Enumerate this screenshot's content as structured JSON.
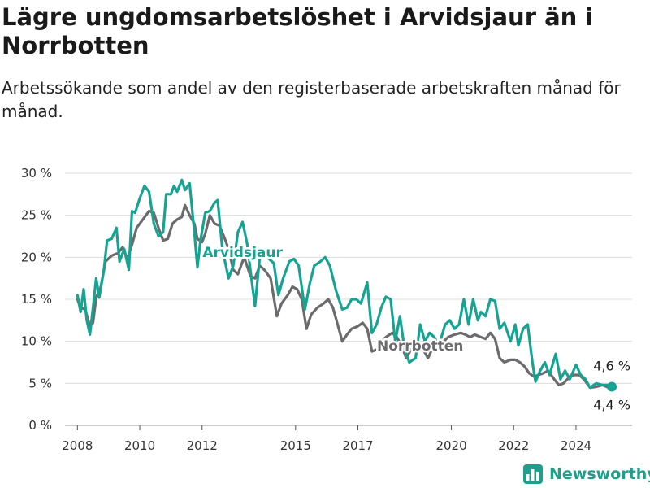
{
  "header": {
    "title": "Lägre ungdomsarbetslöshet i Arvidsjaur än i Norrbotten",
    "subtitle": "Arbetssökande som andel av den registerbaserade arbetskraften månad för månad."
  },
  "brand": {
    "name": "Newsworthy",
    "icon": "bar-chart-icon",
    "color": "#1f9e8a"
  },
  "chart_data": {
    "type": "line",
    "ylim": [
      0,
      30
    ],
    "xlim": [
      2007.6,
      2025.8
    ],
    "y_ticks": [
      0,
      5,
      10,
      15,
      20,
      25,
      30
    ],
    "y_tick_labels": [
      "0 %",
      "5 %",
      "10 %",
      "15 %",
      "20 %",
      "25 %",
      "30 %"
    ],
    "x_ticks": [
      2008,
      2010,
      2012,
      2015,
      2017,
      2020,
      2022,
      2024
    ],
    "x_tick_labels": [
      "2008",
      "2010",
      "2012",
      "2015",
      "2017",
      "2020",
      "2022",
      "2024"
    ],
    "grid": true,
    "series": [
      {
        "name": "Norrbotten",
        "color": "#6b6b6e",
        "end_label": "4,4 %",
        "points": [
          [
            2008,
            15
          ],
          [
            2008.1,
            14
          ],
          [
            2008.25,
            13.8
          ],
          [
            2008.4,
            11.8
          ],
          [
            2008.5,
            12.2
          ],
          [
            2008.6,
            15.2
          ],
          [
            2008.75,
            16.5
          ],
          [
            2008.9,
            19.5
          ],
          [
            2009.1,
            20.2
          ],
          [
            2009.3,
            20.5
          ],
          [
            2009.45,
            21.2
          ],
          [
            2009.6,
            19.8
          ],
          [
            2009.75,
            21.5
          ],
          [
            2009.9,
            23.5
          ],
          [
            2010.1,
            24.5
          ],
          [
            2010.3,
            25.5
          ],
          [
            2010.45,
            25.3
          ],
          [
            2010.6,
            23.5
          ],
          [
            2010.75,
            22
          ],
          [
            2010.9,
            22.2
          ],
          [
            2011.05,
            24
          ],
          [
            2011.2,
            24.5
          ],
          [
            2011.35,
            24.8
          ],
          [
            2011.45,
            26.2
          ],
          [
            2011.6,
            25
          ],
          [
            2011.75,
            24
          ],
          [
            2011.85,
            22.2
          ],
          [
            2012.0,
            21.8
          ],
          [
            2012.1,
            22.8
          ],
          [
            2012.25,
            25
          ],
          [
            2012.4,
            24
          ],
          [
            2012.55,
            23.8
          ],
          [
            2012.7,
            22.5
          ],
          [
            2012.85,
            21
          ],
          [
            2013.0,
            18.5
          ],
          [
            2013.15,
            18
          ],
          [
            2013.35,
            20
          ],
          [
            2013.55,
            17.8
          ],
          [
            2013.7,
            17.5
          ],
          [
            2013.85,
            19
          ],
          [
            2014.0,
            18.5
          ],
          [
            2014.2,
            17.5
          ],
          [
            2014.4,
            13
          ],
          [
            2014.55,
            14.5
          ],
          [
            2014.75,
            15.5
          ],
          [
            2014.9,
            16.5
          ],
          [
            2015.05,
            16.2
          ],
          [
            2015.2,
            15
          ],
          [
            2015.35,
            11.5
          ],
          [
            2015.5,
            13.2
          ],
          [
            2015.7,
            14
          ],
          [
            2015.9,
            14.5
          ],
          [
            2016.05,
            15
          ],
          [
            2016.2,
            14
          ],
          [
            2016.35,
            12
          ],
          [
            2016.5,
            10
          ],
          [
            2016.65,
            10.8
          ],
          [
            2016.8,
            11.5
          ],
          [
            2017.0,
            11.8
          ],
          [
            2017.15,
            12.2
          ],
          [
            2017.3,
            11.5
          ],
          [
            2017.45,
            8.8
          ],
          [
            2017.6,
            9
          ],
          [
            2017.75,
            10
          ],
          [
            2017.9,
            10.5
          ],
          [
            2018.1,
            11
          ],
          [
            2018.25,
            10.5
          ],
          [
            2018.4,
            9.5
          ],
          [
            2018.55,
            8
          ],
          [
            2018.7,
            9
          ],
          [
            2018.9,
            9.5
          ],
          [
            2019.1,
            9
          ],
          [
            2019.25,
            8
          ],
          [
            2019.4,
            9.2
          ],
          [
            2019.55,
            9.5
          ],
          [
            2019.75,
            10
          ],
          [
            2019.9,
            10.5
          ],
          [
            2020.1,
            10.8
          ],
          [
            2020.3,
            11
          ],
          [
            2020.45,
            10.8
          ],
          [
            2020.6,
            10.5
          ],
          [
            2020.75,
            10.8
          ],
          [
            2020.95,
            10.5
          ],
          [
            2021.1,
            10.3
          ],
          [
            2021.25,
            11
          ],
          [
            2021.4,
            10.3
          ],
          [
            2021.55,
            8
          ],
          [
            2021.7,
            7.5
          ],
          [
            2021.9,
            7.8
          ],
          [
            2022.05,
            7.8
          ],
          [
            2022.2,
            7.5
          ],
          [
            2022.35,
            7
          ],
          [
            2022.5,
            6.2
          ],
          [
            2022.65,
            5.8
          ],
          [
            2022.8,
            6
          ],
          [
            2022.95,
            6.2
          ],
          [
            2023.1,
            6.5
          ],
          [
            2023.3,
            5.5
          ],
          [
            2023.45,
            4.8
          ],
          [
            2023.6,
            5
          ],
          [
            2023.8,
            5.8
          ],
          [
            2023.95,
            6
          ],
          [
            2024.1,
            6
          ],
          [
            2024.25,
            5.5
          ],
          [
            2024.45,
            4.5
          ],
          [
            2024.65,
            4.6
          ],
          [
            2024.85,
            4.8
          ],
          [
            2025.05,
            4.5
          ],
          [
            2025.15,
            4.4
          ]
        ]
      },
      {
        "name": "Arvidsjaur",
        "color": "#17a392",
        "end_label": "4,6 %",
        "points": [
          [
            2008,
            15.5
          ],
          [
            2008.1,
            13.5
          ],
          [
            2008.2,
            16.2
          ],
          [
            2008.3,
            12.5
          ],
          [
            2008.4,
            10.8
          ],
          [
            2008.5,
            14
          ],
          [
            2008.6,
            17.5
          ],
          [
            2008.7,
            15.2
          ],
          [
            2008.85,
            18.5
          ],
          [
            2008.95,
            22
          ],
          [
            2009.1,
            22.2
          ],
          [
            2009.25,
            23.5
          ],
          [
            2009.35,
            19.5
          ],
          [
            2009.5,
            21
          ],
          [
            2009.65,
            18.5
          ],
          [
            2009.75,
            25.5
          ],
          [
            2009.85,
            25.3
          ],
          [
            2010.0,
            27
          ],
          [
            2010.15,
            28.5
          ],
          [
            2010.3,
            27.8
          ],
          [
            2010.45,
            24
          ],
          [
            2010.6,
            22.5
          ],
          [
            2010.75,
            23
          ],
          [
            2010.85,
            27.5
          ],
          [
            2011.0,
            27.5
          ],
          [
            2011.1,
            28.5
          ],
          [
            2011.2,
            27.8
          ],
          [
            2011.35,
            29.2
          ],
          [
            2011.45,
            28
          ],
          [
            2011.6,
            28.8
          ],
          [
            2011.75,
            23
          ],
          [
            2011.85,
            18.8
          ],
          [
            2011.95,
            22
          ],
          [
            2012.1,
            25.3
          ],
          [
            2012.25,
            25.5
          ],
          [
            2012.4,
            26.5
          ],
          [
            2012.5,
            26.8
          ],
          [
            2012.65,
            21
          ],
          [
            2012.85,
            17.5
          ],
          [
            2013.0,
            19
          ],
          [
            2013.15,
            23
          ],
          [
            2013.3,
            24.2
          ],
          [
            2013.45,
            21.5
          ],
          [
            2013.6,
            17
          ],
          [
            2013.7,
            14.2
          ],
          [
            2013.85,
            20
          ],
          [
            2014.0,
            20.5
          ],
          [
            2014.15,
            19.8
          ],
          [
            2014.3,
            19.3
          ],
          [
            2014.45,
            15.5
          ],
          [
            2014.6,
            17.5
          ],
          [
            2014.8,
            19.5
          ],
          [
            2014.95,
            19.8
          ],
          [
            2015.1,
            19
          ],
          [
            2015.3,
            13.8
          ],
          [
            2015.45,
            16.8
          ],
          [
            2015.6,
            19
          ],
          [
            2015.8,
            19.5
          ],
          [
            2015.95,
            20
          ],
          [
            2016.1,
            19
          ],
          [
            2016.3,
            16
          ],
          [
            2016.5,
            13.8
          ],
          [
            2016.65,
            14
          ],
          [
            2016.8,
            15
          ],
          [
            2016.95,
            15
          ],
          [
            2017.1,
            14.5
          ],
          [
            2017.3,
            17
          ],
          [
            2017.45,
            11
          ],
          [
            2017.6,
            12
          ],
          [
            2017.75,
            14
          ],
          [
            2017.9,
            15.3
          ],
          [
            2018.05,
            15
          ],
          [
            2018.2,
            10
          ],
          [
            2018.35,
            13
          ],
          [
            2018.5,
            9
          ],
          [
            2018.65,
            7.5
          ],
          [
            2018.85,
            8
          ],
          [
            2019.0,
            12
          ],
          [
            2019.15,
            10
          ],
          [
            2019.3,
            11
          ],
          [
            2019.45,
            10.5
          ],
          [
            2019.6,
            9.5
          ],
          [
            2019.8,
            12
          ],
          [
            2019.95,
            12.5
          ],
          [
            2020.1,
            11.5
          ],
          [
            2020.25,
            12
          ],
          [
            2020.4,
            15
          ],
          [
            2020.55,
            12
          ],
          [
            2020.7,
            15
          ],
          [
            2020.85,
            12.5
          ],
          [
            2020.95,
            13.5
          ],
          [
            2021.1,
            13
          ],
          [
            2021.25,
            15
          ],
          [
            2021.4,
            14.8
          ],
          [
            2021.55,
            11.5
          ],
          [
            2021.7,
            12.2
          ],
          [
            2021.9,
            10
          ],
          [
            2022.05,
            12
          ],
          [
            2022.15,
            9.5
          ],
          [
            2022.3,
            11.5
          ],
          [
            2022.45,
            12
          ],
          [
            2022.6,
            7.5
          ],
          [
            2022.7,
            5.2
          ],
          [
            2022.85,
            6.5
          ],
          [
            2023.0,
            7.5
          ],
          [
            2023.15,
            6
          ],
          [
            2023.35,
            8.5
          ],
          [
            2023.5,
            5.5
          ],
          [
            2023.65,
            6.5
          ],
          [
            2023.8,
            5.5
          ],
          [
            2024.0,
            7.2
          ],
          [
            2024.15,
            6
          ],
          [
            2024.3,
            5.5
          ],
          [
            2024.45,
            4.5
          ],
          [
            2024.65,
            5
          ],
          [
            2024.85,
            4.8
          ],
          [
            2025.05,
            4.8
          ],
          [
            2025.15,
            4.6
          ]
        ]
      }
    ],
    "annotations": [
      {
        "text": "Arvidsjaur",
        "series": "Arvidsjaur",
        "x": 2013.3,
        "y": 20.6,
        "color": "#17a392"
      },
      {
        "text": "Norrbotten",
        "series": "Norrbotten",
        "x": 2019.0,
        "y": 9.5,
        "color": "#6b6b6e"
      }
    ]
  }
}
